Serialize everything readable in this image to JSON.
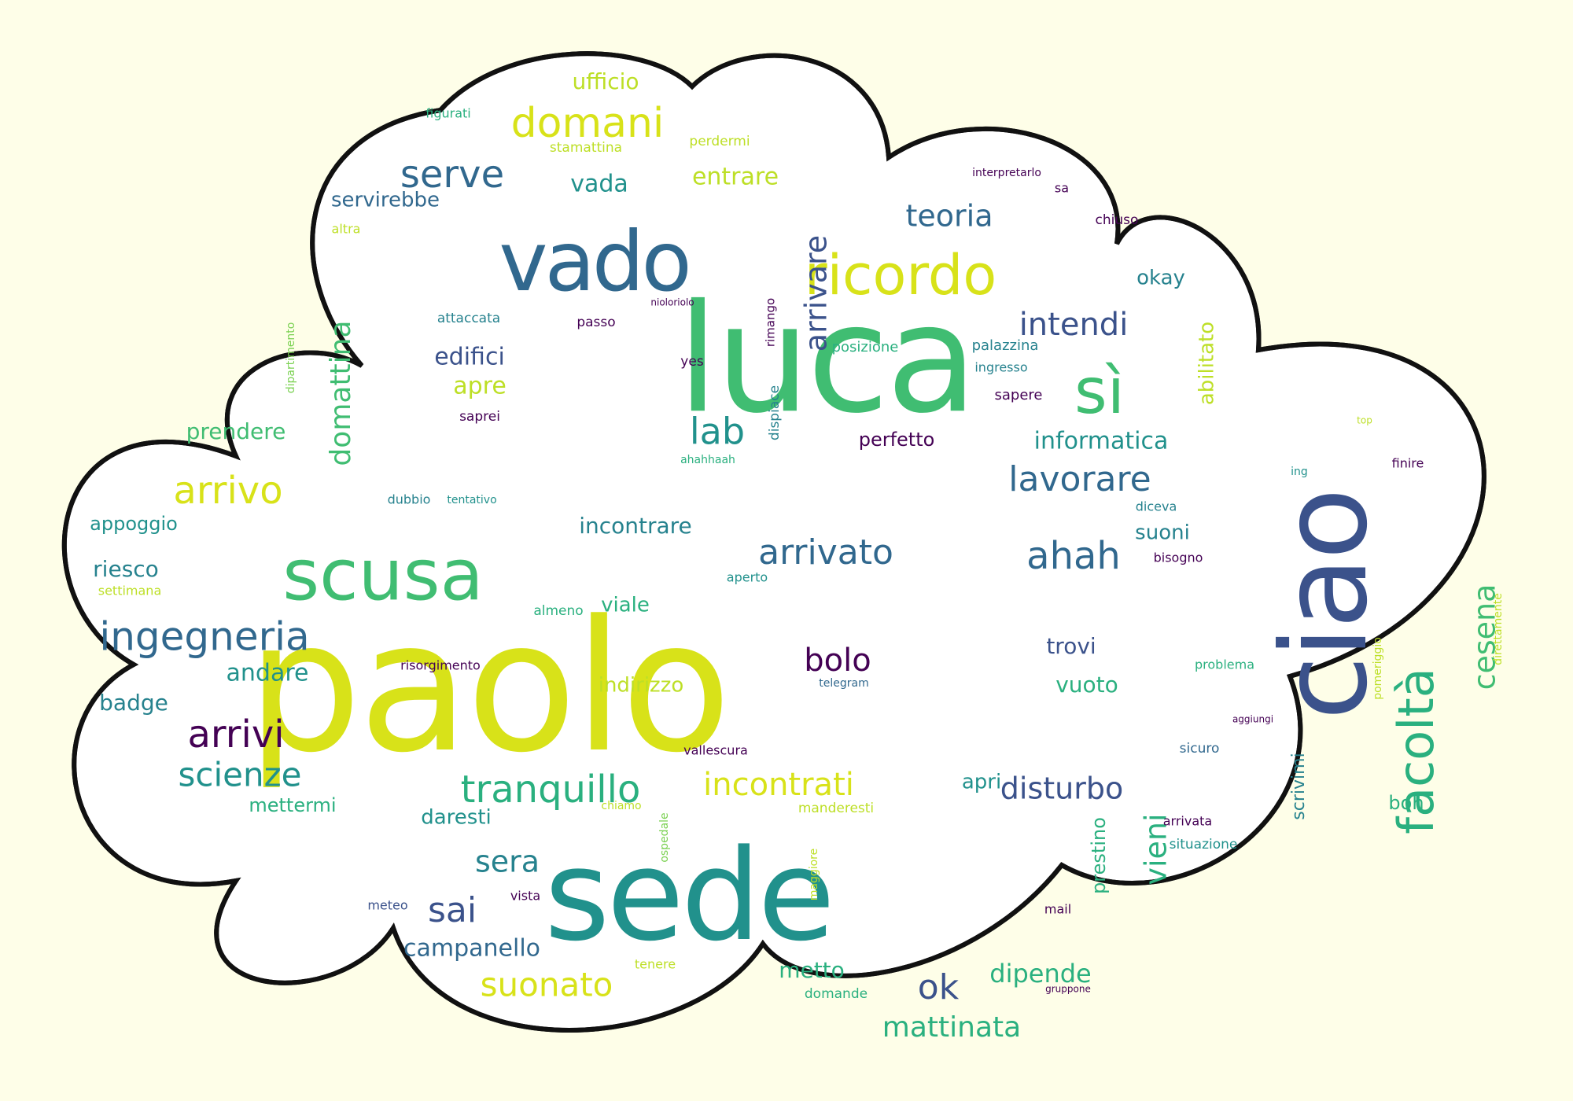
{
  "palette": {
    "background": "#fefee8",
    "cloud_fill": "#ffffff",
    "cloud_outline": "#111111",
    "word_colors": {
      "dark_purple": "#440154",
      "indigo": "#3b528b",
      "steel_blue": "#31688e",
      "teal_blue": "#26828e",
      "teal": "#21918c",
      "sea_green": "#2ab07f",
      "green": "#40bd72",
      "light_green": "#7ad151",
      "lime": "#bddf26",
      "yellow_lime": "#d8e219"
    }
  },
  "words": [
    {
      "text": "paolo",
      "color": "yellow_lime"
    },
    {
      "text": "luca",
      "color": "green"
    },
    {
      "text": "sede",
      "color": "teal"
    },
    {
      "text": "ciao",
      "color": "indigo"
    },
    {
      "text": "vado",
      "color": "steel_blue"
    },
    {
      "text": "scusa",
      "color": "green"
    },
    {
      "text": "ricordo",
      "color": "yellow_lime"
    },
    {
      "text": "sì",
      "color": "green"
    },
    {
      "text": "facoltà",
      "color": "sea_green"
    },
    {
      "text": "domani",
      "color": "yellow_lime"
    },
    {
      "text": "serve",
      "color": "steel_blue"
    },
    {
      "text": "ingegneria",
      "color": "steel_blue"
    },
    {
      "text": "arrivato",
      "color": "steel_blue"
    },
    {
      "text": "ahah",
      "color": "steel_blue"
    },
    {
      "text": "tranquillo",
      "color": "sea_green"
    },
    {
      "text": "arrivo",
      "color": "yellow_lime"
    },
    {
      "text": "lavorare",
      "color": "steel_blue"
    },
    {
      "text": "domattina",
      "color": "green"
    },
    {
      "text": "arrivi",
      "color": "dark_purple"
    },
    {
      "text": "intendi",
      "color": "indigo"
    },
    {
      "text": "teoria",
      "color": "steel_blue"
    },
    {
      "text": "arrivare",
      "color": "indigo"
    },
    {
      "text": "scienze",
      "color": "teal"
    },
    {
      "text": "incontrati",
      "color": "yellow_lime"
    },
    {
      "text": "disturbo",
      "color": "indigo"
    },
    {
      "text": "cesena",
      "color": "green"
    },
    {
      "text": "vieni",
      "color": "sea_green"
    },
    {
      "text": "sai",
      "color": "indigo"
    },
    {
      "text": "suonato",
      "color": "yellow_lime"
    },
    {
      "text": "ok",
      "color": "indigo"
    },
    {
      "text": "lab",
      "color": "teal"
    },
    {
      "text": "bolo",
      "color": "dark_purple"
    },
    {
      "text": "sera",
      "color": "teal_blue"
    },
    {
      "text": "mattinata",
      "color": "sea_green"
    },
    {
      "text": "campanello",
      "color": "steel_blue"
    },
    {
      "text": "dipende",
      "color": "sea_green"
    },
    {
      "text": "informatica",
      "color": "teal"
    },
    {
      "text": "edifici",
      "color": "indigo"
    },
    {
      "text": "apre",
      "color": "lime"
    },
    {
      "text": "incontrare",
      "color": "teal_blue"
    },
    {
      "text": "entrare",
      "color": "lime"
    },
    {
      "text": "vada",
      "color": "teal"
    },
    {
      "text": "ufficio",
      "color": "lime"
    },
    {
      "text": "okay",
      "color": "teal_blue"
    },
    {
      "text": "abilitato",
      "color": "lime"
    },
    {
      "text": "andare",
      "color": "teal"
    },
    {
      "text": "badge",
      "color": "teal_blue"
    },
    {
      "text": "riesco",
      "color": "teal_blue"
    },
    {
      "text": "appoggio",
      "color": "teal"
    },
    {
      "text": "prendere",
      "color": "green"
    },
    {
      "text": "servirebbe",
      "color": "steel_blue"
    },
    {
      "text": "suoni",
      "color": "teal_blue"
    },
    {
      "text": "trovi",
      "color": "indigo"
    },
    {
      "text": "vuoto",
      "color": "sea_green"
    },
    {
      "text": "indirizzo",
      "color": "lime"
    },
    {
      "text": "metto",
      "color": "sea_green"
    },
    {
      "text": "apri",
      "color": "teal"
    },
    {
      "text": "daresti",
      "color": "teal"
    },
    {
      "text": "prestino",
      "color": "sea_green"
    },
    {
      "text": "perfetto",
      "color": "dark_purple"
    },
    {
      "text": "mettermi",
      "color": "sea_green"
    },
    {
      "text": "viale",
      "color": "sea_green"
    },
    {
      "text": "scrivimi",
      "color": "teal_blue"
    },
    {
      "text": "boh",
      "color": "sea_green"
    },
    {
      "text": "palazzina",
      "color": "teal_blue"
    },
    {
      "text": "sapere",
      "color": "dark_purple"
    },
    {
      "text": "posizione",
      "color": "sea_green"
    },
    {
      "text": "attaccata",
      "color": "teal_blue"
    },
    {
      "text": "passo",
      "color": "dark_purple"
    },
    {
      "text": "saprei",
      "color": "dark_purple"
    },
    {
      "text": "yes",
      "color": "dark_purple"
    },
    {
      "text": "rimango",
      "color": "dark_purple"
    },
    {
      "text": "dispiace",
      "color": "teal_blue"
    },
    {
      "text": "ingresso",
      "color": "teal_blue"
    },
    {
      "text": "figurati",
      "color": "sea_green"
    },
    {
      "text": "stamattina",
      "color": "lime"
    },
    {
      "text": "perdermi",
      "color": "lime"
    },
    {
      "text": "interpretarlo",
      "color": "dark_purple"
    },
    {
      "text": "sa",
      "color": "dark_purple"
    },
    {
      "text": "chiuso",
      "color": "dark_purple"
    },
    {
      "text": "altra",
      "color": "lime"
    },
    {
      "text": "nioloriolo",
      "color": "dark_purple"
    },
    {
      "text": "dipartimento",
      "color": "light_green"
    },
    {
      "text": "ahahhaah",
      "color": "sea_green"
    },
    {
      "text": "dubbio",
      "color": "teal_blue"
    },
    {
      "text": "tentativo",
      "color": "teal"
    },
    {
      "text": "settimana",
      "color": "lime"
    },
    {
      "text": "almeno",
      "color": "sea_green"
    },
    {
      "text": "aperto",
      "color": "teal"
    },
    {
      "text": "risorgimento",
      "color": "dark_purple"
    },
    {
      "text": "telegram",
      "color": "steel_blue"
    },
    {
      "text": "vallescura",
      "color": "dark_purple"
    },
    {
      "text": "chiamo",
      "color": "lime"
    },
    {
      "text": "ospedale",
      "color": "light_green"
    },
    {
      "text": "manderesti",
      "color": "lime"
    },
    {
      "text": "maggiore",
      "color": "lime"
    },
    {
      "text": "meteo",
      "color": "indigo"
    },
    {
      "text": "vista",
      "color": "dark_purple"
    },
    {
      "text": "mail",
      "color": "dark_purple"
    },
    {
      "text": "tenere",
      "color": "lime"
    },
    {
      "text": "domande",
      "color": "sea_green"
    },
    {
      "text": "gruppone",
      "color": "dark_purple"
    },
    {
      "text": "arrivata",
      "color": "dark_purple"
    },
    {
      "text": "situazione",
      "color": "teal"
    },
    {
      "text": "sicuro",
      "color": "steel_blue"
    },
    {
      "text": "aggiungi",
      "color": "dark_purple"
    },
    {
      "text": "problema",
      "color": "sea_green"
    },
    {
      "text": "pomeriggio",
      "color": "lime"
    },
    {
      "text": "direttamente",
      "color": "lime"
    },
    {
      "text": "diceva",
      "color": "teal_blue"
    },
    {
      "text": "bisogno",
      "color": "dark_purple"
    },
    {
      "text": "finire",
      "color": "dark_purple"
    },
    {
      "text": "ing",
      "color": "teal"
    },
    {
      "text": "top",
      "color": "lime"
    }
  ]
}
